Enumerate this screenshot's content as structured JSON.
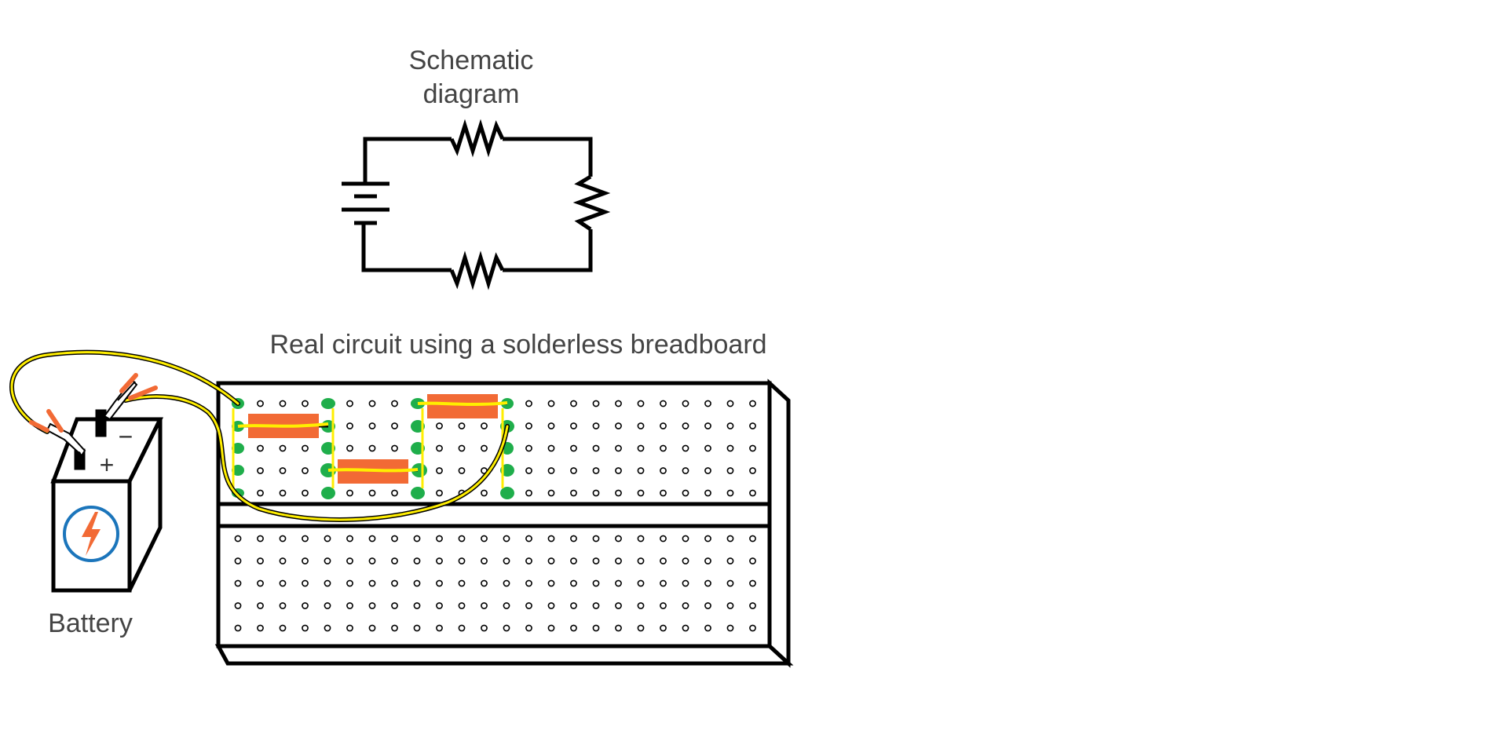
{
  "schematic": {
    "title_line1": "Schematic",
    "title_line2": "diagram"
  },
  "breadboard": {
    "title": "Real circuit using a solderless breadboard",
    "top_block": {
      "rows": 5,
      "columns": 24
    },
    "bottom_block": {
      "rows": 5,
      "columns": 24
    }
  },
  "battery": {
    "label": "Battery",
    "positive_symbol": "+",
    "negative_symbol": "−",
    "icon": "lightning-bolt-icon"
  },
  "components": {
    "resistor_count": 3
  },
  "colors": {
    "line": "#000000",
    "text": "#444444",
    "resistor": "#f26a35",
    "wire": "#ffee00",
    "connection_dot": "#1fae4b",
    "battery_icon_ring": "#1b75bb",
    "clip": "#f26a35"
  }
}
